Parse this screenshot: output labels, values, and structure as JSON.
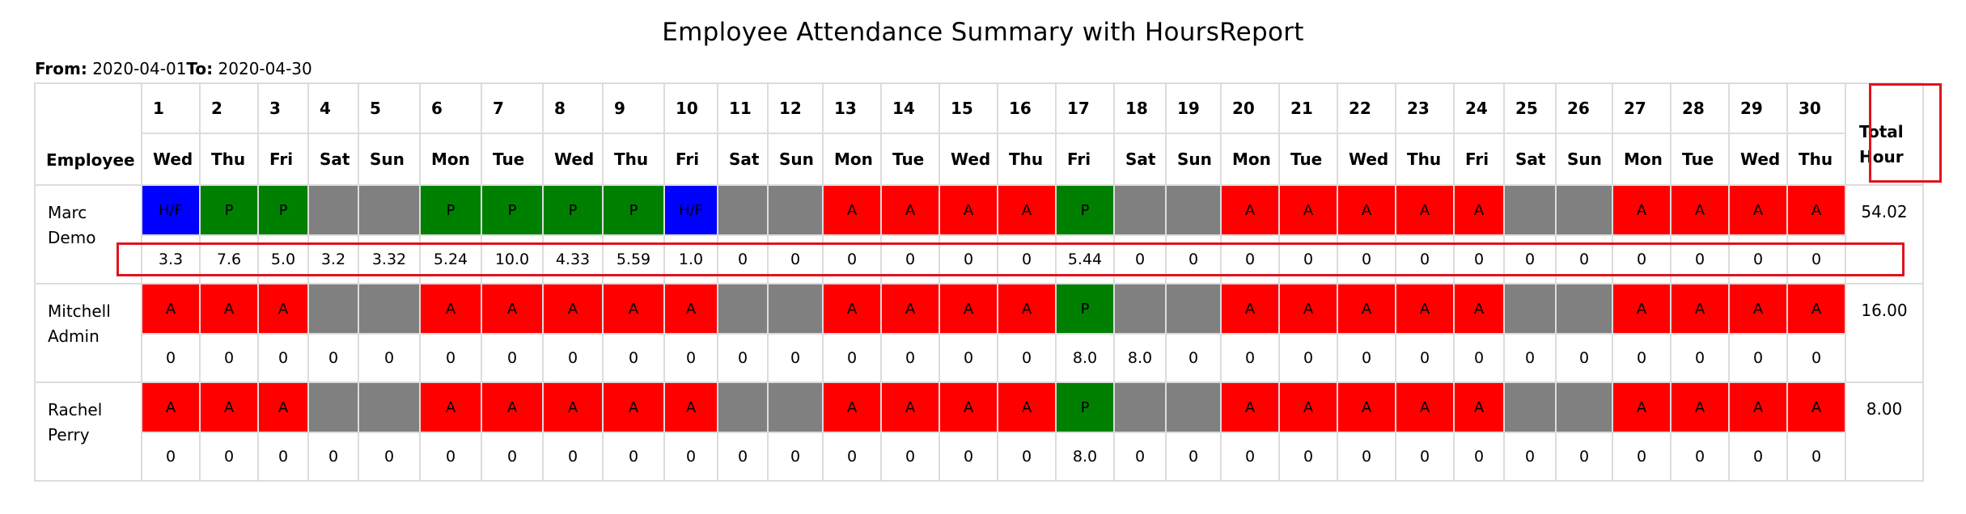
{
  "report": {
    "title": "Employee Attendance Summary with HoursReport",
    "from_label": "From:",
    "from_value": "2020-04-01",
    "to_label": "To:",
    "to_value": "2020-04-30"
  },
  "columns": {
    "employee_label": "Employee",
    "total_label_1": "Total",
    "total_label_2": "Hour",
    "days": [
      "1",
      "2",
      "3",
      "4",
      "5",
      "6",
      "7",
      "8",
      "9",
      "10",
      "11",
      "12",
      "13",
      "14",
      "15",
      "16",
      "17",
      "18",
      "19",
      "20",
      "21",
      "22",
      "23",
      "24",
      "25",
      "26",
      "27",
      "28",
      "29",
      "30"
    ],
    "weekdays": [
      "Wed",
      "Thu",
      "Fri",
      "Sat",
      "Sun",
      "Mon",
      "Tue",
      "Wed",
      "Thu",
      "Fri",
      "Sat",
      "Sun",
      "Mon",
      "Tue",
      "Wed",
      "Thu",
      "Fri",
      "Sat",
      "Sun",
      "Mon",
      "Tue",
      "Wed",
      "Thu",
      "Fri",
      "Sat",
      "Sun",
      "Mon",
      "Tue",
      "Wed",
      "Thu"
    ]
  },
  "status_colors": {
    "P": "#008000",
    "A": "#ff0000",
    "H/F": "#0000ff",
    "weekend": "#808080"
  },
  "employees": [
    {
      "name_line1": "Marc",
      "name_line2": "Demo",
      "status": [
        "H/F",
        "P",
        "P",
        "",
        "",
        "P",
        "P",
        "P",
        "P",
        "H/F",
        "",
        "",
        "A",
        "A",
        "A",
        "A",
        "P",
        "",
        "",
        "A",
        "A",
        "A",
        "A",
        "A",
        "",
        "",
        "A",
        "A",
        "A",
        "A"
      ],
      "hours": [
        "3.3",
        "7.6",
        "5.0",
        "3.2",
        "3.32",
        "5.24",
        "10.0",
        "4.33",
        "5.59",
        "1.0",
        "0",
        "0",
        "0",
        "0",
        "0",
        "0",
        "5.44",
        "0",
        "0",
        "0",
        "0",
        "0",
        "0",
        "0",
        "0",
        "0",
        "0",
        "0",
        "0",
        "0"
      ],
      "total": "54.02"
    },
    {
      "name_line1": "Mitchell",
      "name_line2": "Admin",
      "status": [
        "A",
        "A",
        "A",
        "",
        "",
        "A",
        "A",
        "A",
        "A",
        "A",
        "",
        "",
        "A",
        "A",
        "A",
        "A",
        "P",
        "",
        "",
        "A",
        "A",
        "A",
        "A",
        "A",
        "",
        "",
        "A",
        "A",
        "A",
        "A"
      ],
      "hours": [
        "0",
        "0",
        "0",
        "0",
        "0",
        "0",
        "0",
        "0",
        "0",
        "0",
        "0",
        "0",
        "0",
        "0",
        "0",
        "0",
        "8.0",
        "8.0",
        "0",
        "0",
        "0",
        "0",
        "0",
        "0",
        "0",
        "0",
        "0",
        "0",
        "0",
        "0"
      ],
      "total": "16.00"
    },
    {
      "name_line1": "Rachel",
      "name_line2": "Perry",
      "status": [
        "A",
        "A",
        "A",
        "",
        "",
        "A",
        "A",
        "A",
        "A",
        "A",
        "",
        "",
        "A",
        "A",
        "A",
        "A",
        "P",
        "",
        "",
        "A",
        "A",
        "A",
        "A",
        "A",
        "",
        "",
        "A",
        "A",
        "A",
        "A"
      ],
      "hours": [
        "0",
        "0",
        "0",
        "0",
        "0",
        "0",
        "0",
        "0",
        "0",
        "0",
        "0",
        "0",
        "0",
        "0",
        "0",
        "0",
        "8.0",
        "0",
        "0",
        "0",
        "0",
        "0",
        "0",
        "0",
        "0",
        "0",
        "0",
        "0",
        "0",
        "0"
      ],
      "total": "8.00"
    }
  ]
}
